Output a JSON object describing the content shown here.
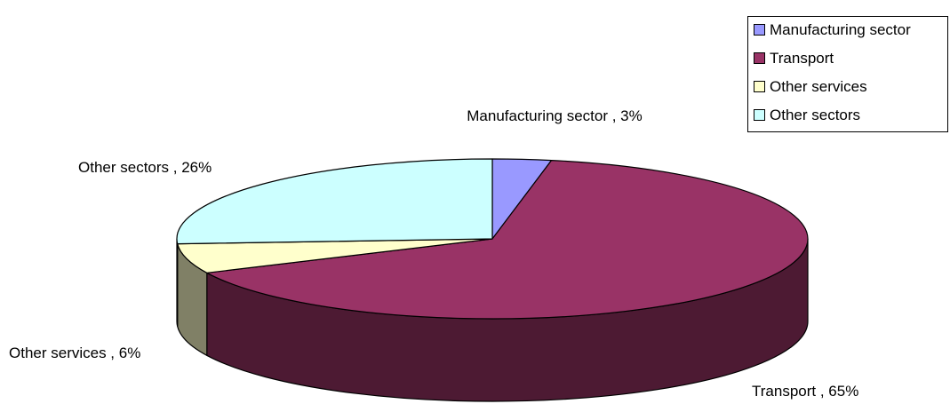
{
  "chart_data": {
    "type": "pie3d",
    "categories": [
      "Manufacturing sector",
      "Transport",
      "Other services",
      "Other sectors"
    ],
    "values": [
      3,
      65,
      6,
      26
    ],
    "value_labels": [
      "Manufacturing sector , 3%",
      "Transport , 65%",
      "Other services , 6%",
      "Other sectors , 26%"
    ],
    "colors": [
      "#9999ff",
      "#993366",
      "#ffffcc",
      "#ccffff"
    ],
    "side_colors": [
      "#4d4d80",
      "#4d1a33",
      "#808066",
      "#668080"
    ],
    "legend": "top-right"
  }
}
